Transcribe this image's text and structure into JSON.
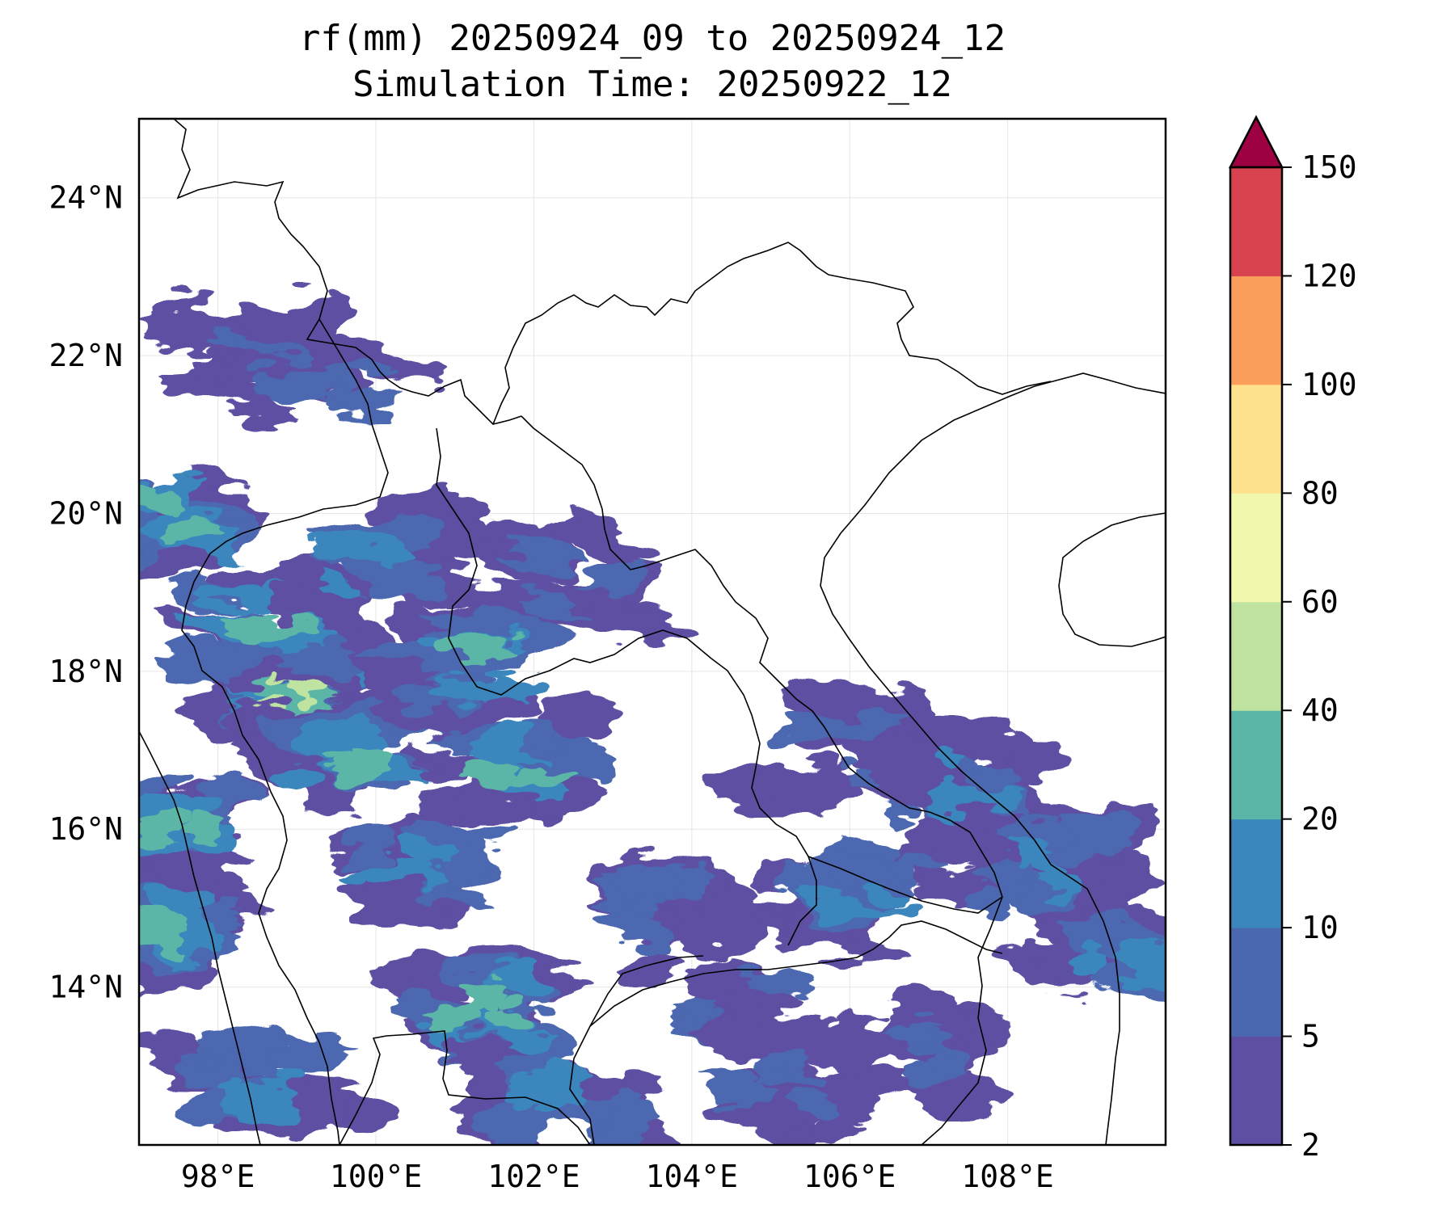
{
  "title": {
    "line1": "rf(mm) 20250924_09 to 20250924_12",
    "line2": "Simulation Time: 20250922_12"
  },
  "map": {
    "lon_range": [
      97.0,
      110.0
    ],
    "lat_range": [
      12.0,
      25.0
    ],
    "lon_ticks": [
      {
        "value": 98,
        "label": "98°E"
      },
      {
        "value": 100,
        "label": "100°E"
      },
      {
        "value": 102,
        "label": "102°E"
      },
      {
        "value": 104,
        "label": "104°E"
      },
      {
        "value": 106,
        "label": "106°E"
      },
      {
        "value": 108,
        "label": "108°E"
      }
    ],
    "lat_ticks": [
      {
        "value": 14,
        "label": "14°N"
      },
      {
        "value": 16,
        "label": "16°N"
      },
      {
        "value": 18,
        "label": "18°N"
      },
      {
        "value": 20,
        "label": "20°N"
      },
      {
        "value": 22,
        "label": "22°N"
      },
      {
        "value": 24,
        "label": "24°N"
      }
    ],
    "grid": true
  },
  "colorbar": {
    "levels": [
      2,
      5,
      10,
      20,
      40,
      60,
      80,
      100,
      120,
      150
    ],
    "labels": [
      "2",
      "5",
      "10",
      "20",
      "40",
      "60",
      "80",
      "100",
      "120",
      "150"
    ],
    "colors": [
      "#5e4fa2",
      "#4b67b0",
      "#3b86bc",
      "#5bb6a8",
      "#bfe3a0",
      "#f2f7ae",
      "#fde18c",
      "#f99f5b",
      "#d8434f"
    ],
    "extend_color": "#9e0142",
    "extend": "max"
  },
  "chart_data": {
    "type": "heatmap",
    "title": "rf(mm) 20250924_09 to 20250924_12",
    "subtitle": "Simulation Time: 20250922_12",
    "xlabel": "",
    "ylabel": "",
    "xlim": [
      97.0,
      110.0
    ],
    "ylim": [
      12.0,
      25.0
    ],
    "rain_regions": [
      {
        "lon": 97.4,
        "lat": 14.8,
        "value": 30
      },
      {
        "lon": 97.4,
        "lat": 16.2,
        "value": 25
      },
      {
        "lon": 97.3,
        "lat": 19.9,
        "value": 25
      },
      {
        "lon": 98.9,
        "lat": 17.8,
        "value": 45
      },
      {
        "lon": 99.6,
        "lat": 17.0,
        "value": 35
      },
      {
        "lon": 98.6,
        "lat": 18.6,
        "value": 30
      },
      {
        "lon": 101.8,
        "lat": 16.8,
        "value": 35
      },
      {
        "lon": 101.3,
        "lat": 13.7,
        "value": 25
      },
      {
        "lon": 100.5,
        "lat": 15.5,
        "value": 15
      },
      {
        "lon": 101.2,
        "lat": 18.1,
        "value": 20
      },
      {
        "lon": 102.6,
        "lat": 19.1,
        "value": 8
      },
      {
        "lon": 99.3,
        "lat": 21.6,
        "value": 6
      },
      {
        "lon": 98.5,
        "lat": 21.9,
        "value": 5
      },
      {
        "lon": 103.5,
        "lat": 15.0,
        "value": 8
      },
      {
        "lon": 104.5,
        "lat": 13.7,
        "value": 8
      },
      {
        "lon": 106.3,
        "lat": 15.2,
        "value": 12
      },
      {
        "lon": 107.3,
        "lat": 16.6,
        "value": 10
      },
      {
        "lon": 108.5,
        "lat": 15.5,
        "value": 12
      },
      {
        "lon": 109.5,
        "lat": 14.3,
        "value": 10
      },
      {
        "lon": 106.8,
        "lat": 13.2,
        "value": 8
      },
      {
        "lon": 105.2,
        "lat": 12.8,
        "value": 6
      },
      {
        "lon": 102.4,
        "lat": 12.6,
        "value": 18
      },
      {
        "lon": 98.5,
        "lat": 12.8,
        "value": 12
      },
      {
        "lon": 99.9,
        "lat": 19.4,
        "value": 15
      },
      {
        "lon": 105.8,
        "lat": 17.0,
        "value": 6
      }
    ]
  }
}
